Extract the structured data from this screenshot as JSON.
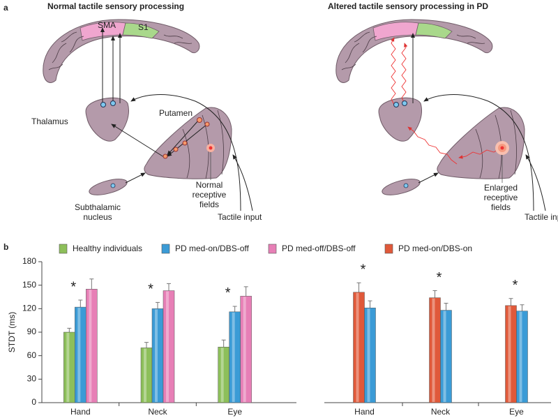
{
  "panel_a": {
    "label": "a",
    "left": {
      "title": "Normal tactile sensory processing",
      "sma": "SMA",
      "s1": "S1",
      "thalamus": "Thalamus",
      "putamen": "Putamen",
      "subthalamic": [
        "Subthalamic",
        "nucleus"
      ],
      "fields": [
        "Normal",
        "receptive",
        "fields"
      ],
      "input": "Tactile input"
    },
    "right": {
      "title": "Altered tactile sensory processing in PD",
      "fields": [
        "Enlarged",
        "receptive",
        "fields"
      ],
      "input": "Tactile input"
    }
  },
  "panel_b": {
    "label": "b"
  },
  "chart_data": [
    {
      "type": "bar",
      "y_label": "STDT (ms)",
      "categories": [
        "Hand",
        "Neck",
        "Eye"
      ],
      "series": [
        {
          "name": "Healthy individuals",
          "color": "#8dbf5a",
          "values": [
            90,
            70,
            71
          ],
          "errors": [
            5,
            7,
            9
          ]
        },
        {
          "name": "PD med-on/DBS-off",
          "color": "#3b9bd6",
          "values": [
            122,
            120,
            116
          ],
          "errors": [
            9,
            8,
            7
          ]
        },
        {
          "name": "PD med-off/DBS-off",
          "color": "#e77fb6",
          "values": [
            145,
            143,
            136
          ],
          "errors": [
            13,
            9,
            12
          ]
        }
      ],
      "annotations": [
        "*",
        "*",
        "*"
      ],
      "ylim": [
        0,
        180
      ],
      "yticks": [
        0,
        30,
        60,
        90,
        120,
        150,
        180
      ]
    },
    {
      "type": "bar",
      "categories": [
        "Hand",
        "Neck",
        "Eye"
      ],
      "series": [
        {
          "name": "PD med-on/DBS-on",
          "color": "#e0593a",
          "values": [
            141,
            134,
            124
          ],
          "errors": [
            12,
            9,
            9
          ]
        },
        {
          "name": "PD med-on/DBS-off",
          "color": "#3b9bd6",
          "values": [
            121,
            118,
            117
          ],
          "errors": [
            9,
            9,
            8
          ]
        }
      ],
      "annotations": [
        "*",
        "*",
        "*"
      ],
      "ylim": [
        0,
        180
      ]
    }
  ]
}
